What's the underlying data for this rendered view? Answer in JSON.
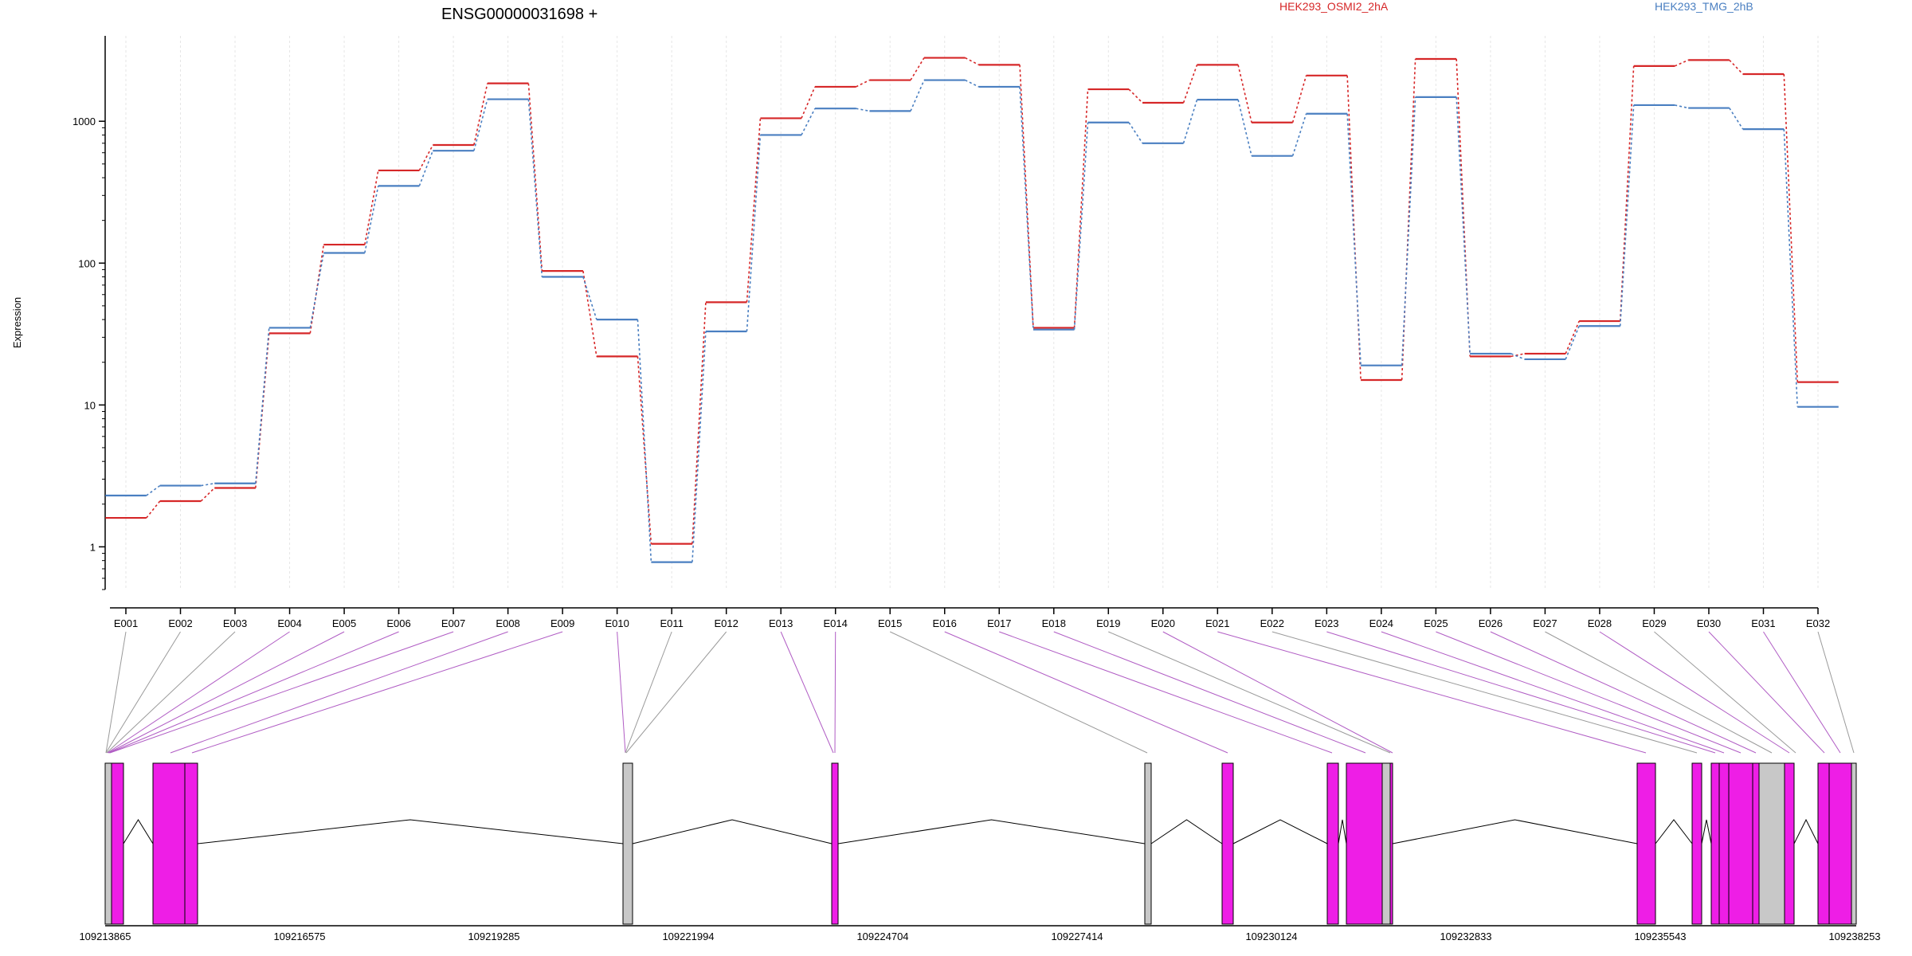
{
  "chart_data": {
    "type": "line",
    "title": "ENSG00000031698 +",
    "ylabel": "Expression",
    "yscale": "log",
    "ylim": [
      0.5,
      4000
    ],
    "yticks": [
      1,
      10,
      100,
      1000
    ],
    "ytick_labels": [
      "1",
      "10",
      "100",
      "1000"
    ],
    "grid": true,
    "legend_placement": "top-right",
    "categories": [
      "E001",
      "E002",
      "E003",
      "E004",
      "E005",
      "E006",
      "E007",
      "E008",
      "E009",
      "E010",
      "E011",
      "E012",
      "E013",
      "E014",
      "E015",
      "E016",
      "E017",
      "E018",
      "E019",
      "E020",
      "E021",
      "E022",
      "E023",
      "E024",
      "E025",
      "E026",
      "E027",
      "E028",
      "E029",
      "E030",
      "E031",
      "E032"
    ],
    "series": [
      {
        "name": "HEK293_OSMI2_2hA",
        "color": "#d62728",
        "values": [
          1.6,
          2.1,
          2.6,
          32,
          135,
          450,
          680,
          1850,
          88,
          22,
          1.05,
          53,
          1050,
          1750,
          1950,
          2800,
          2500,
          35,
          1680,
          1350,
          2500,
          980,
          2100,
          15,
          2750,
          22,
          23,
          39,
          2450,
          2700,
          2150,
          14.5
        ]
      },
      {
        "name": "HEK293_TMG_2hB",
        "color": "#4a7fc1",
        "values": [
          2.3,
          2.7,
          2.8,
          35,
          118,
          350,
          620,
          1430,
          80,
          40,
          0.78,
          33,
          800,
          1230,
          1180,
          1950,
          1750,
          34,
          980,
          700,
          1420,
          570,
          1130,
          19,
          1480,
          23,
          21,
          36,
          1300,
          1240,
          880,
          9.7
        ]
      }
    ],
    "gene_model": {
      "coordinate_ticks": [
        "109213865",
        "109216575",
        "109219285",
        "109221994",
        "109224704",
        "109227414",
        "109230124",
        "109232833",
        "109235543",
        "109238253"
      ],
      "exon_colors": {
        "tested": "#ee1ee6",
        "untested": "#c8c8c8"
      }
    }
  }
}
